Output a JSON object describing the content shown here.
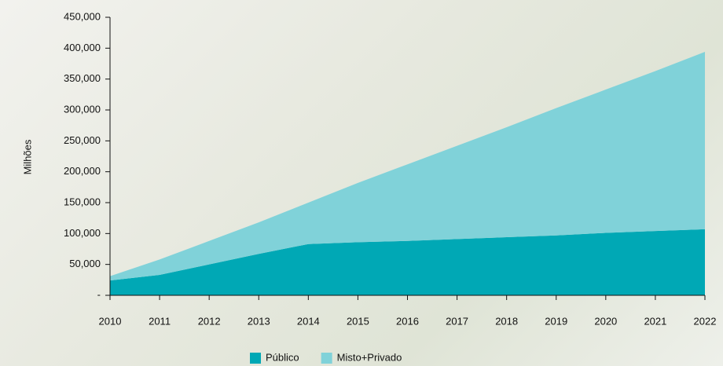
{
  "chart_data": {
    "type": "stacked_area",
    "y_label": "Milhões",
    "categories": [
      "2010",
      "2011",
      "2012",
      "2013",
      "2014",
      "2015",
      "2016",
      "2017",
      "2018",
      "2019",
      "2020",
      "2021",
      "2022"
    ],
    "series": [
      {
        "name": "Público",
        "color": "#00a8b5",
        "values": [
          24000,
          33000,
          50000,
          67000,
          83000,
          86000,
          88000,
          91000,
          94000,
          97000,
          101000,
          104000,
          107000
        ]
      },
      {
        "name": "Misto+Privado",
        "color": "#80d2d9",
        "values": [
          7000,
          25000,
          38000,
          51000,
          67000,
          96000,
          124000,
          151000,
          178000,
          206000,
          232000,
          259000,
          287000
        ]
      }
    ],
    "ylim": [
      0,
      450000
    ],
    "yticks": [
      {
        "value": 0,
        "label": "-"
      },
      {
        "value": 50000,
        "label": "50,000"
      },
      {
        "value": 100000,
        "label": "100,000"
      },
      {
        "value": 150000,
        "label": "150,000"
      },
      {
        "value": 200000,
        "label": "200,000"
      },
      {
        "value": 250000,
        "label": "250,000"
      },
      {
        "value": 300000,
        "label": "300,000"
      },
      {
        "value": 350000,
        "label": "350,000"
      },
      {
        "value": 400000,
        "label": "400,000"
      },
      {
        "value": 450000,
        "label": "450,000"
      }
    ],
    "legend": "bottom"
  }
}
